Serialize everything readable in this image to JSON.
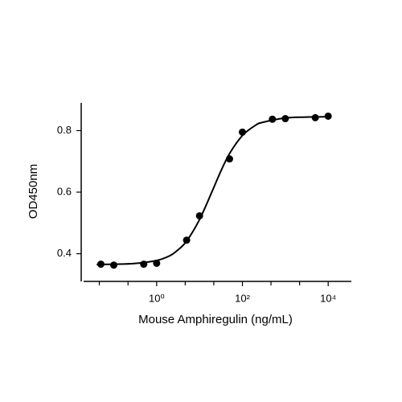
{
  "chart_data": {
    "type": "scatter",
    "x_label": "Mouse Amphiregulin (ng/mL)",
    "y_label": "OD450nm",
    "xscale": "log",
    "xlim": [
      0.0174,
      34700
    ],
    "ylim": [
      0.31,
      0.89
    ],
    "xticks": [
      {
        "value": 1,
        "label": "10⁰"
      },
      {
        "value": 100,
        "label": "10²"
      },
      {
        "value": 10000,
        "label": "10⁴"
      }
    ],
    "xminorticks": [
      0.046,
      0.215,
      4.64,
      21.5,
      464,
      2154
    ],
    "yticks": [
      0.4,
      0.6,
      0.8
    ],
    "points": {
      "color": "#000000",
      "x": [
        0.05,
        0.1,
        0.5,
        1,
        5,
        10,
        50,
        100,
        500,
        1000,
        5000,
        10000
      ],
      "values": [
        0.366,
        0.363,
        0.366,
        0.369,
        0.444,
        0.523,
        0.708,
        0.795,
        0.837,
        0.839,
        0.842,
        0.847
      ]
    },
    "curve": {
      "color": "#000000",
      "x": [
        0.04,
        0.1,
        0.3,
        1,
        2,
        3,
        5,
        10,
        20,
        30,
        50,
        100,
        200,
        300,
        1000,
        3000,
        10000
      ],
      "values": [
        0.365,
        0.366,
        0.368,
        0.378,
        0.393,
        0.41,
        0.441,
        0.511,
        0.605,
        0.662,
        0.725,
        0.784,
        0.817,
        0.827,
        0.841,
        0.844,
        0.845
      ]
    }
  }
}
